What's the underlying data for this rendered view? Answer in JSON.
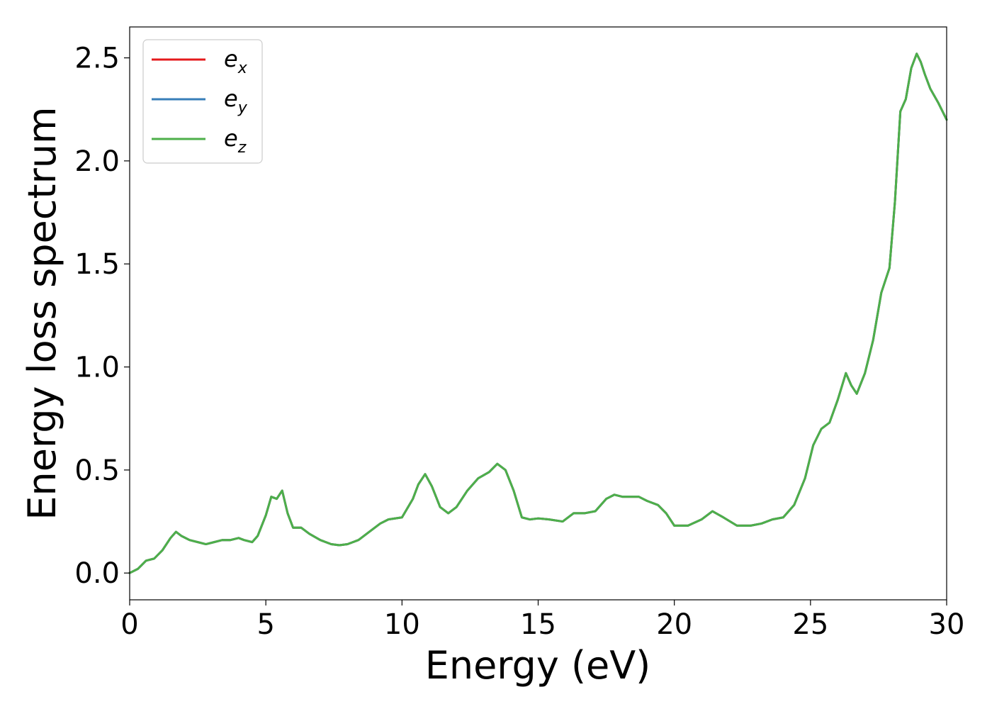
{
  "chart_data": {
    "type": "line",
    "xlabel": "Energy (eV)",
    "ylabel": "Energy loss spectrum",
    "xlim": [
      0,
      30
    ],
    "ylim": [
      -0.13,
      2.65
    ],
    "xticks": [
      0,
      5,
      10,
      15,
      20,
      25,
      30
    ],
    "xtick_labels": [
      "0",
      "5",
      "10",
      "15",
      "20",
      "25",
      "30"
    ],
    "yticks": [
      0.0,
      0.5,
      1.0,
      1.5,
      2.0,
      2.5
    ],
    "ytick_labels": [
      "0.0",
      "0.5",
      "1.0",
      "1.5",
      "2.0",
      "2.5"
    ],
    "grid": false,
    "legend_position": "top-left",
    "x": [
      0,
      0.3,
      0.6,
      0.9,
      1.2,
      1.5,
      1.7,
      1.9,
      2.2,
      2.5,
      2.8,
      3.1,
      3.4,
      3.7,
      4.0,
      4.2,
      4.5,
      4.7,
      5.0,
      5.2,
      5.4,
      5.6,
      5.8,
      6.0,
      6.3,
      6.6,
      7.0,
      7.4,
      7.7,
      8.0,
      8.4,
      8.8,
      9.2,
      9.5,
      10.0,
      10.4,
      10.6,
      10.85,
      11.1,
      11.4,
      11.7,
      12.0,
      12.4,
      12.8,
      13.2,
      13.5,
      13.8,
      14.1,
      14.4,
      14.7,
      15.0,
      15.4,
      15.9,
      16.3,
      16.7,
      17.1,
      17.5,
      17.8,
      18.1,
      18.4,
      18.7,
      19.0,
      19.4,
      19.7,
      20.0,
      20.5,
      21.0,
      21.4,
      21.8,
      22.3,
      22.8,
      23.2,
      23.6,
      24.0,
      24.4,
      24.8,
      25.1,
      25.4,
      25.7,
      26.0,
      26.3,
      26.5,
      26.7,
      27.0,
      27.3,
      27.6,
      27.9,
      28.1,
      28.3,
      28.5,
      28.7,
      28.9,
      29.05,
      29.2,
      29.4,
      29.7,
      30.0
    ],
    "series": [
      {
        "name": "e_x",
        "color": "#e41a1c",
        "values": [
          0.0,
          0.02,
          0.06,
          0.07,
          0.11,
          0.17,
          0.2,
          0.18,
          0.16,
          0.15,
          0.14,
          0.15,
          0.16,
          0.16,
          0.17,
          0.16,
          0.15,
          0.18,
          0.28,
          0.37,
          0.36,
          0.4,
          0.29,
          0.22,
          0.22,
          0.19,
          0.16,
          0.14,
          0.135,
          0.14,
          0.16,
          0.2,
          0.24,
          0.26,
          0.27,
          0.36,
          0.43,
          0.48,
          0.42,
          0.32,
          0.29,
          0.32,
          0.4,
          0.46,
          0.49,
          0.53,
          0.5,
          0.4,
          0.27,
          0.26,
          0.265,
          0.26,
          0.25,
          0.29,
          0.29,
          0.3,
          0.36,
          0.38,
          0.37,
          0.37,
          0.37,
          0.35,
          0.33,
          0.29,
          0.23,
          0.23,
          0.26,
          0.3,
          0.27,
          0.23,
          0.23,
          0.24,
          0.26,
          0.27,
          0.33,
          0.46,
          0.62,
          0.7,
          0.73,
          0.84,
          0.97,
          0.91,
          0.87,
          0.97,
          1.13,
          1.36,
          1.48,
          1.8,
          2.24,
          2.3,
          2.45,
          2.52,
          2.48,
          2.42,
          2.35,
          2.28,
          2.2
        ]
      },
      {
        "name": "e_y",
        "color": "#377eb8",
        "values": [
          0.0,
          0.02,
          0.06,
          0.07,
          0.11,
          0.17,
          0.2,
          0.18,
          0.16,
          0.15,
          0.14,
          0.15,
          0.16,
          0.16,
          0.17,
          0.16,
          0.15,
          0.18,
          0.28,
          0.37,
          0.36,
          0.4,
          0.29,
          0.22,
          0.22,
          0.19,
          0.16,
          0.14,
          0.135,
          0.14,
          0.16,
          0.2,
          0.24,
          0.26,
          0.27,
          0.36,
          0.43,
          0.48,
          0.42,
          0.32,
          0.29,
          0.32,
          0.4,
          0.46,
          0.49,
          0.53,
          0.5,
          0.4,
          0.27,
          0.26,
          0.265,
          0.26,
          0.25,
          0.29,
          0.29,
          0.3,
          0.36,
          0.38,
          0.37,
          0.37,
          0.37,
          0.35,
          0.33,
          0.29,
          0.23,
          0.23,
          0.26,
          0.3,
          0.27,
          0.23,
          0.23,
          0.24,
          0.26,
          0.27,
          0.33,
          0.46,
          0.62,
          0.7,
          0.73,
          0.84,
          0.97,
          0.91,
          0.87,
          0.97,
          1.13,
          1.36,
          1.48,
          1.8,
          2.24,
          2.3,
          2.45,
          2.52,
          2.48,
          2.42,
          2.35,
          2.28,
          2.2
        ]
      },
      {
        "name": "e_z",
        "color": "#4daf4a",
        "values": [
          0.0,
          0.02,
          0.06,
          0.07,
          0.11,
          0.17,
          0.2,
          0.18,
          0.16,
          0.15,
          0.14,
          0.15,
          0.16,
          0.16,
          0.17,
          0.16,
          0.15,
          0.18,
          0.28,
          0.37,
          0.36,
          0.4,
          0.29,
          0.22,
          0.22,
          0.19,
          0.16,
          0.14,
          0.135,
          0.14,
          0.16,
          0.2,
          0.24,
          0.26,
          0.27,
          0.36,
          0.43,
          0.48,
          0.42,
          0.32,
          0.29,
          0.32,
          0.4,
          0.46,
          0.49,
          0.53,
          0.5,
          0.4,
          0.27,
          0.26,
          0.265,
          0.26,
          0.25,
          0.29,
          0.29,
          0.3,
          0.36,
          0.38,
          0.37,
          0.37,
          0.37,
          0.35,
          0.33,
          0.29,
          0.23,
          0.23,
          0.26,
          0.3,
          0.27,
          0.23,
          0.23,
          0.24,
          0.26,
          0.27,
          0.33,
          0.46,
          0.62,
          0.7,
          0.73,
          0.84,
          0.97,
          0.91,
          0.87,
          0.97,
          1.13,
          1.36,
          1.48,
          1.8,
          2.24,
          2.3,
          2.45,
          2.52,
          2.48,
          2.42,
          2.35,
          2.28,
          2.2
        ]
      }
    ],
    "legend": [
      {
        "base": "e",
        "sub": "x",
        "color": "#e41a1c"
      },
      {
        "base": "e",
        "sub": "y",
        "color": "#377eb8"
      },
      {
        "base": "e",
        "sub": "z",
        "color": "#4daf4a"
      }
    ]
  }
}
